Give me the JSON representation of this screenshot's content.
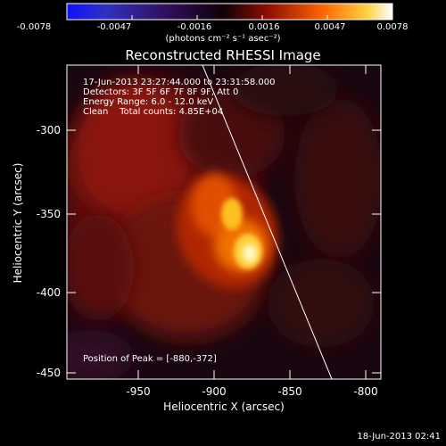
{
  "colorbar": {
    "ticks": [
      "-0.0078",
      "-0.0047",
      "-0.0016",
      "0.0016",
      "0.0047",
      "0.0078"
    ],
    "units": "(photons cm⁻² s⁻¹ asec⁻²)"
  },
  "title": "Reconstructed RHESSI Image",
  "info": {
    "time": "17-Jun-2013 23:27:44.000 to 23:31:58.000",
    "detectors": "Detectors: 3F 5F 6F 7F 8F 9F, Att 0",
    "energy": "Energy Range: 6.0 - 12.0 keV",
    "clean": "Clean    Total counts: 4.85E+04",
    "peak": "Position of Peak = [-880,-372]"
  },
  "axes": {
    "xlabel": "Heliocentric X (arcsec)",
    "ylabel": "Heliocentric Y (arcsec)",
    "xticks": [
      "-950",
      "-900",
      "-850",
      "-800"
    ],
    "yticks": [
      "-300",
      "-350",
      "-400",
      "-450"
    ]
  },
  "timestamp": "18-Jun-2013 02:41"
}
